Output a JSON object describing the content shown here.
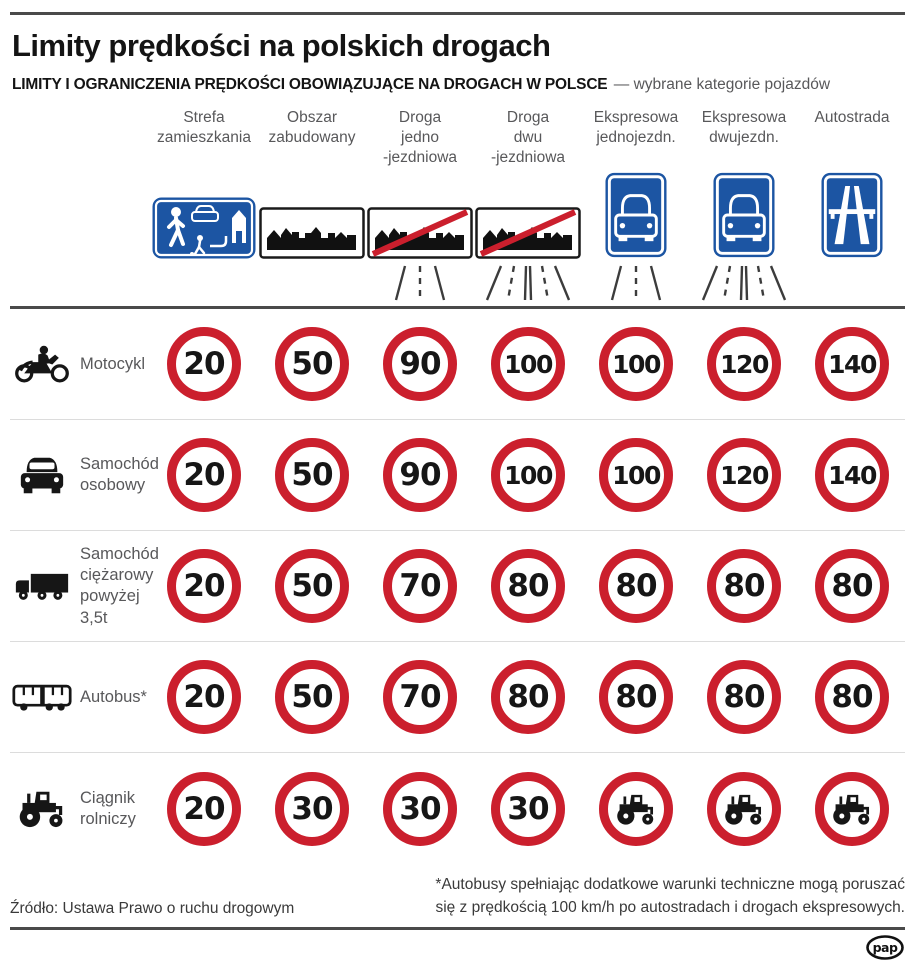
{
  "colors": {
    "sign_red": "#cb1f2d",
    "sign_blue": "#1c55a3",
    "rule_dark": "#4a4a4a",
    "row_separator": "#dcdcdc",
    "label_gray": "#58585a",
    "title_dark": "#141414",
    "footer_text": "#3a3a3a"
  },
  "header": {
    "title": "Limity prędkości na polskich drogach",
    "subtitle_bold": "LIMITY I OGRANICZENIA PRĘDKOŚCI OBOWIĄZUJĄCE NA DROGACH W POLSCE",
    "subtitle_note": "— wybrane kategorie pojazdów"
  },
  "columns": [
    {
      "id": "strefa-zamieszkania",
      "label_lines": [
        "Strefa",
        "zamieszkania"
      ],
      "sign": "residential-zone",
      "road": null
    },
    {
      "id": "obszar-zabudowany",
      "label_lines": [
        "Obszar",
        "zabudowany"
      ],
      "sign": "built-up-area",
      "road": null
    },
    {
      "id": "droga-jednojezdniowa",
      "label_lines": [
        "Droga",
        "jedno",
        "-jezdniowa"
      ],
      "sign": "end-of-built-up-area",
      "road": "single"
    },
    {
      "id": "droga-dwujezdniowa",
      "label_lines": [
        "Droga",
        "dwu",
        "-jezdniowa"
      ],
      "sign": "end-of-built-up-area",
      "road": "dual"
    },
    {
      "id": "ekspresowa-jednojezdn",
      "label_lines": [
        "Ekspresowa",
        "jednojezdn."
      ],
      "sign": "expressway",
      "road": "single"
    },
    {
      "id": "ekspresowa-dwujezdn",
      "label_lines": [
        "Ekspresowa",
        "dwujezdn."
      ],
      "sign": "expressway",
      "road": "dual"
    },
    {
      "id": "autostrada",
      "label_lines": [
        "Autostrada"
      ],
      "sign": "motorway",
      "road": null
    }
  ],
  "rows": [
    {
      "id": "motocykl",
      "label_lines": [
        "Motocykl"
      ],
      "icon": "motorcycle",
      "limits": [
        "20",
        "50",
        "90",
        "100",
        "100",
        "120",
        "140"
      ]
    },
    {
      "id": "samochod-osobowy",
      "label_lines": [
        "Samochód",
        "osobowy"
      ],
      "icon": "car",
      "limits": [
        "20",
        "50",
        "90",
        "100",
        "100",
        "120",
        "140"
      ]
    },
    {
      "id": "samochod-ciezarowy",
      "label_lines": [
        "Samochód",
        "ciężarowy",
        "powyżej 3,5t"
      ],
      "icon": "truck",
      "limits": [
        "20",
        "50",
        "70",
        "80",
        "80",
        "80",
        "80"
      ]
    },
    {
      "id": "autobus",
      "label_lines": [
        "Autobus*"
      ],
      "icon": "bus",
      "limits": [
        "20",
        "50",
        "70",
        "80",
        "80",
        "80",
        "80"
      ]
    },
    {
      "id": "ciagnik-rolniczy",
      "label_lines": [
        "Ciągnik",
        "rolniczy"
      ],
      "icon": "tractor",
      "limits": [
        "20",
        "30",
        "30",
        "30",
        "no-tractor",
        "no-tractor",
        "no-tractor"
      ]
    }
  ],
  "footer": {
    "source": "Źródło: Ustawa Prawo o ruchu drogowym",
    "footnote_lines": [
      "*Autobusy spełniając dodatkowe warunki techniczne mogą poruszać",
      "się z prędkością 100 km/h po autostradach i drogach ekspresowych."
    ],
    "logo_text": "pap"
  }
}
